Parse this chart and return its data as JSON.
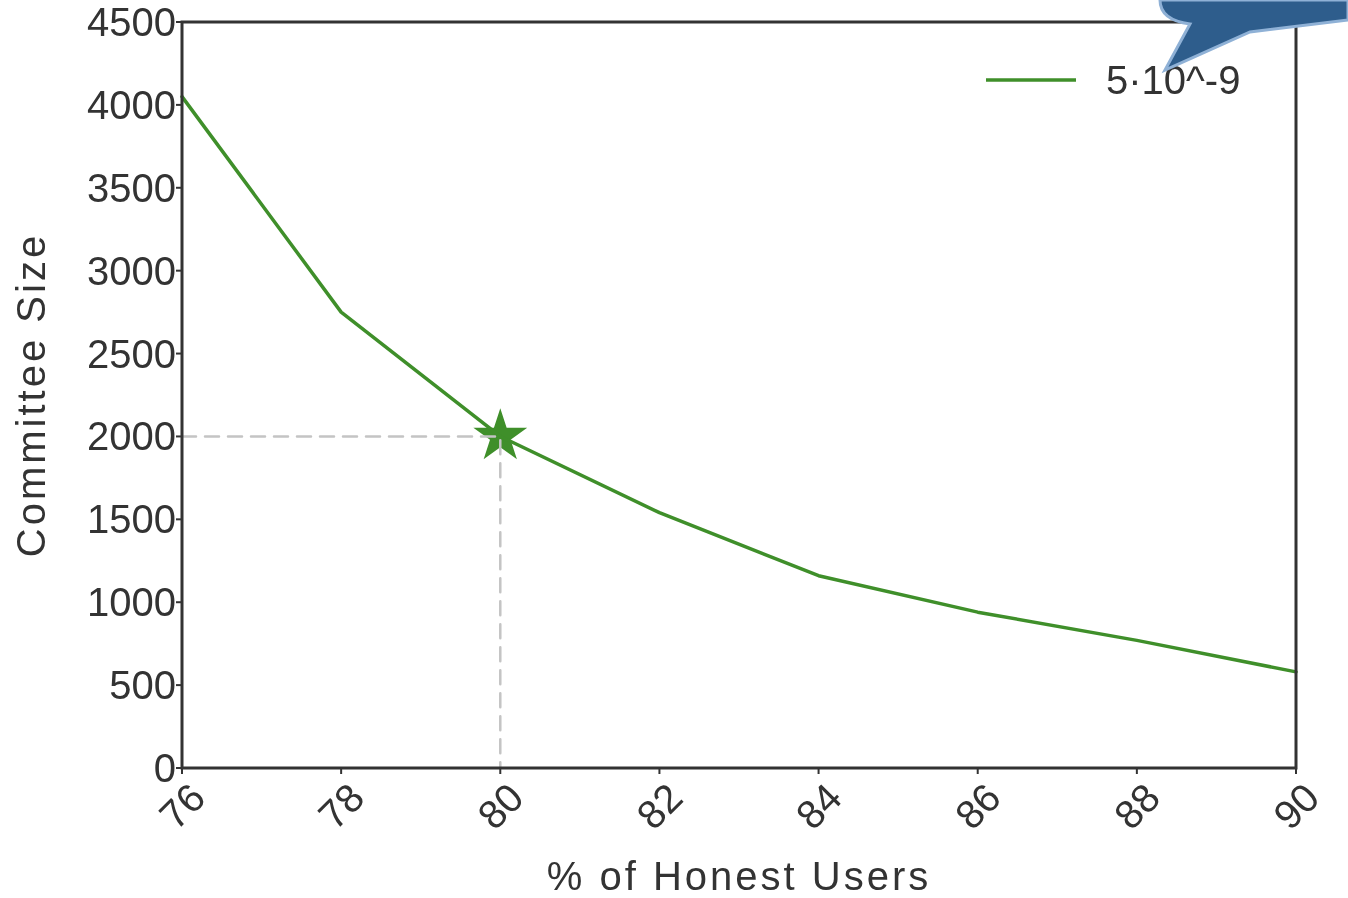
{
  "chart_data": {
    "type": "line",
    "xlabel": "% of Honest Users",
    "ylabel": "Committee Size",
    "xlim": [
      76,
      90
    ],
    "xticks": [
      76,
      78,
      80,
      82,
      84,
      86,
      88,
      90
    ],
    "ylim": [
      0,
      4500
    ],
    "yticks": [
      0,
      500,
      1000,
      1500,
      2000,
      2500,
      3000,
      3500,
      4000,
      4500
    ],
    "grid": false,
    "legend": "top right",
    "marker": "none",
    "series": [
      {
        "type": "scatter",
        "color": "#3f8f2a",
        "x": [
          80
        ],
        "values": [
          2000
        ],
        "marker": "star"
      },
      {
        "name": "5·10^-9",
        "color": "#3f8f2a",
        "x": [
          76,
          78,
          80,
          82,
          84,
          86,
          88,
          90
        ],
        "values": [
          4050,
          2750,
          2000,
          1540,
          1160,
          940,
          770,
          580
        ],
        "line_style": "solid"
      },
      {
        "type": "line",
        "color": "#c4c4c4",
        "x": [
          76,
          80,
          80
        ],
        "values": [
          2000,
          2000,
          0
        ],
        "line_style": "dashed"
      }
    ]
  }
}
